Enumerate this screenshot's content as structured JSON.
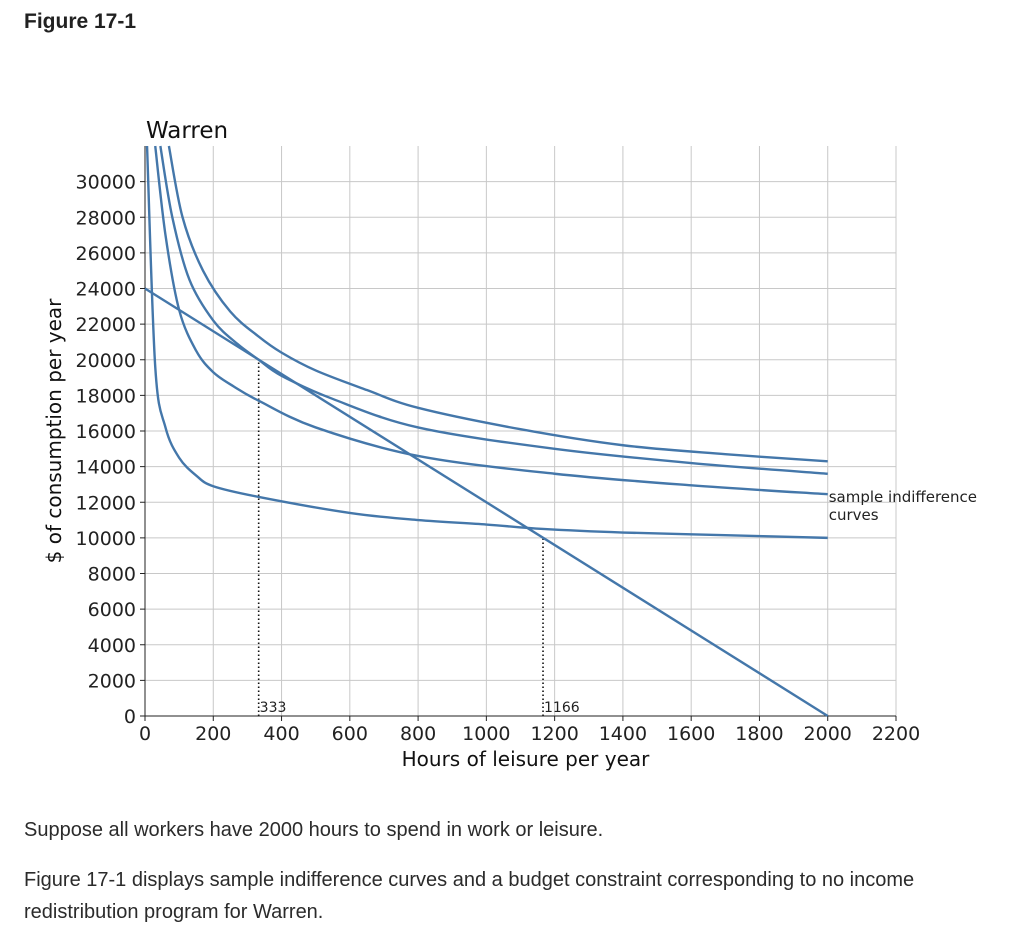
{
  "figure_label": "Figure 17-1",
  "paragraphs": [
    "Suppose all workers have 2000 hours to spend in work or leisure.",
    "Figure 17-1 displays sample indifference curves and a budget constraint corresponding to no income redistribution program for Warren."
  ],
  "colors": {
    "line": "#4477aa",
    "grid": "#c8c8c8",
    "axis": "#222222"
  },
  "chart_data": {
    "type": "line",
    "title": "Warren",
    "xlabel": "Hours of leisure per year",
    "ylabel": "$ of consumption per year",
    "xlim": [
      0,
      2200
    ],
    "ylim": [
      0,
      32000
    ],
    "xticks": [
      0,
      200,
      400,
      600,
      800,
      1000,
      1200,
      1400,
      1600,
      1800,
      2000,
      2200
    ],
    "yticks": [
      0,
      2000,
      4000,
      6000,
      8000,
      10000,
      12000,
      14000,
      16000,
      18000,
      20000,
      22000,
      24000,
      26000,
      28000,
      30000
    ],
    "grid": true,
    "budget_constraint": {
      "x": [
        0,
        2000
      ],
      "y": [
        24000,
        0
      ]
    },
    "indifference_curves": [
      {
        "x": [
          6,
          30,
          60,
          100,
          150,
          200,
          333,
          600,
          800,
          1000,
          1166,
          1400,
          1700,
          2000
        ],
        "y": [
          32000,
          19600,
          16200,
          14500,
          13500,
          12900,
          12300,
          11400,
          11000,
          10750,
          10500,
          10300,
          10150,
          10000
        ]
      },
      {
        "x": [
          30,
          60,
          100,
          150,
          200,
          260,
          333,
          500,
          800,
          1200,
          1600,
          2000
        ],
        "y": [
          32000,
          27000,
          22800,
          20500,
          19300,
          18500,
          17700,
          16200,
          14600,
          13600,
          12950,
          12450
        ]
      },
      {
        "x": [
          45,
          80,
          130,
          200,
          270,
          333,
          400,
          550,
          800,
          1200,
          1600,
          2000
        ],
        "y": [
          32000,
          28000,
          24500,
          22200,
          20900,
          20000,
          19100,
          17800,
          16200,
          15000,
          14200,
          13600
        ]
      },
      {
        "x": [
          70,
          110,
          170,
          250,
          333,
          400,
          500,
          650,
          800,
          1100,
          1400,
          1700,
          2000
        ],
        "y": [
          32000,
          28000,
          25000,
          22700,
          21300,
          20400,
          19400,
          18300,
          17300,
          16100,
          15200,
          14700,
          14300
        ]
      }
    ],
    "guide_lines": [
      {
        "x": 333,
        "y": 20000,
        "label": "333"
      },
      {
        "x": 1166,
        "y": 10000,
        "label": "1166"
      }
    ],
    "annotation": {
      "text": [
        "sample indifference",
        "curves"
      ],
      "x": 2000,
      "y": 12450
    }
  }
}
